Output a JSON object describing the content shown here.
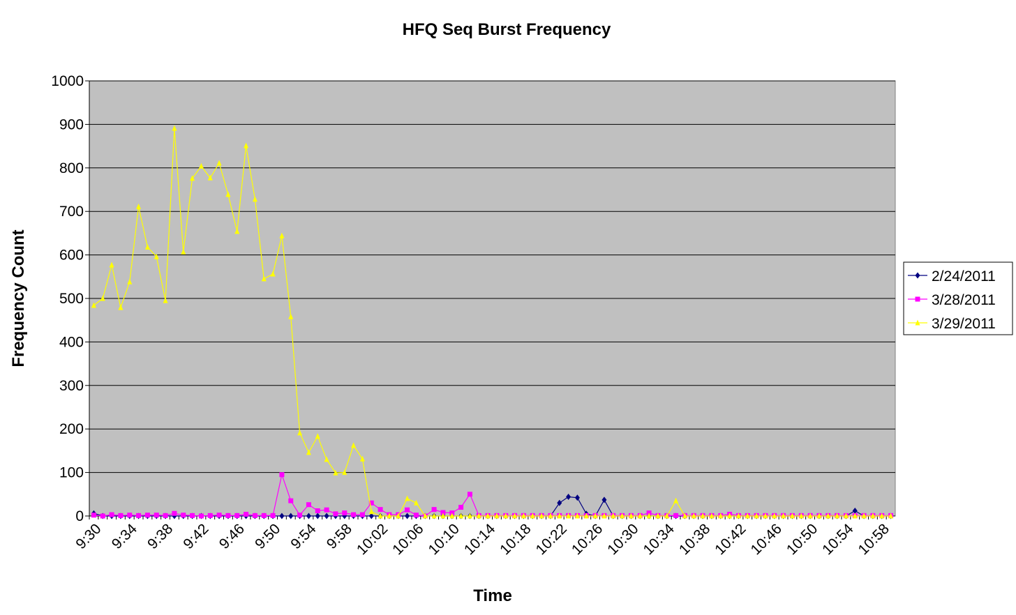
{
  "chart_data": {
    "type": "line",
    "title": "HFQ Seq Burst Frequency",
    "x_label": "Time",
    "y_label": "Frequency Count",
    "categories": [
      "9:30",
      null,
      null,
      null,
      "9:34",
      null,
      null,
      null,
      "9:38",
      null,
      null,
      null,
      "9:42",
      null,
      null,
      null,
      "9:46",
      null,
      null,
      null,
      "9:50",
      null,
      null,
      null,
      "9:54",
      null,
      null,
      null,
      "9:58",
      null,
      null,
      null,
      "10:02",
      null,
      null,
      null,
      "10:06",
      null,
      null,
      null,
      "10:10",
      null,
      null,
      null,
      "10:14",
      null,
      null,
      null,
      "10:18",
      null,
      null,
      null,
      "10:22",
      null,
      null,
      null,
      "10:26",
      null,
      null,
      null,
      "10:30",
      null,
      null,
      null,
      "10:34",
      null,
      null,
      null,
      "10:38",
      null,
      null,
      null,
      "10:42",
      null,
      null,
      null,
      "10:46",
      null,
      null,
      null,
      "10:50",
      null,
      null,
      null,
      "10:54",
      null,
      null,
      null,
      "10:58",
      null
    ],
    "series": [
      {
        "name": "2/24/2011",
        "color": "#000080",
        "marker": "diamond",
        "values": [
          6,
          0,
          0,
          0,
          0,
          0,
          0,
          0,
          0,
          0,
          0,
          0,
          0,
          0,
          0,
          0,
          0,
          0,
          0,
          0,
          0,
          0,
          0,
          0,
          0,
          0,
          0,
          0,
          0,
          0,
          0,
          0,
          0,
          0,
          0,
          0,
          0,
          0,
          0,
          0,
          0,
          0,
          0,
          0,
          0,
          0,
          0,
          0,
          0,
          0,
          0,
          0,
          30,
          44,
          42,
          5,
          0,
          37,
          0,
          0,
          0,
          0,
          0,
          0,
          0,
          0,
          0,
          0,
          0,
          0,
          0,
          0,
          0,
          0,
          0,
          0,
          0,
          0,
          0,
          0,
          0,
          0,
          0,
          0,
          0,
          12,
          0,
          0,
          0,
          0
        ]
      },
      {
        "name": "3/28/2011",
        "color": "#ff00ff",
        "marker": "square",
        "values": [
          2,
          0,
          3,
          1,
          2,
          1,
          2,
          2,
          1,
          6,
          2,
          1,
          0,
          1,
          2,
          1,
          1,
          4,
          1,
          1,
          1,
          95,
          35,
          2,
          26,
          12,
          14,
          5,
          7,
          3,
          3,
          30,
          15,
          3,
          3,
          14,
          2,
          0,
          15,
          8,
          7,
          20,
          50,
          1,
          1,
          1,
          1,
          1,
          1,
          1,
          1,
          1,
          1,
          1,
          1,
          1,
          1,
          1,
          1,
          1,
          1,
          1,
          7,
          1,
          1,
          1,
          1,
          1,
          1,
          1,
          1,
          4,
          1,
          1,
          1,
          1,
          1,
          1,
          1,
          1,
          1,
          1,
          1,
          1,
          1,
          1,
          1,
          1,
          1,
          1
        ]
      },
      {
        "name": "3/29/2011",
        "color": "#ffff00",
        "marker": "triangle",
        "values": [
          484,
          500,
          577,
          479,
          538,
          711,
          618,
          596,
          495,
          891,
          607,
          776,
          804,
          777,
          811,
          739,
          654,
          851,
          728,
          545,
          556,
          644,
          458,
          191,
          146,
          183,
          130,
          99,
          100,
          162,
          131,
          10,
          0,
          0,
          0,
          40,
          30,
          0,
          0,
          0,
          0,
          0,
          0,
          0,
          0,
          0,
          0,
          0,
          0,
          0,
          0,
          0,
          0,
          0,
          0,
          0,
          0,
          0,
          0,
          0,
          0,
          0,
          0,
          0,
          0,
          35,
          0,
          0,
          0,
          0,
          0,
          0,
          0,
          0,
          0,
          0,
          0,
          0,
          0,
          0,
          0,
          0,
          0,
          0,
          0,
          0,
          0,
          0,
          0,
          0
        ]
      }
    ],
    "ylim": [
      0,
      1000
    ],
    "yticks": [
      0,
      100,
      200,
      300,
      400,
      500,
      600,
      700,
      800,
      900,
      1000
    ],
    "grid": true,
    "plot_background": "#c0c0c0",
    "legend": "right"
  }
}
